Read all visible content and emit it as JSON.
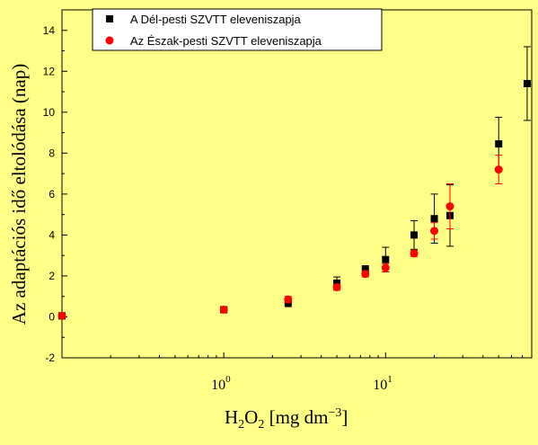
{
  "chart_data": {
    "type": "scatter",
    "x_scale": "log",
    "xlim": [
      0.1,
      80
    ],
    "ylim": [
      -2,
      15
    ],
    "ylabel": "Az adaptációs idő eltolódása (nap)",
    "xlabel": {
      "base": "H",
      "sub1": "2",
      "mid": "O",
      "sub2": "2",
      "rest": " [mg dm",
      "sup": "−3",
      "end": "]"
    },
    "x_ticks": [
      {
        "base": "10",
        "exp": "0",
        "value": 1
      },
      {
        "base": "10",
        "exp": "1",
        "value": 10
      }
    ],
    "y_ticks": [
      "-2",
      "0",
      "2",
      "4",
      "6",
      "8",
      "10",
      "12",
      "14"
    ],
    "legend_position": "top-left",
    "series": [
      {
        "name": "A Dél-pesti SZVTT eleveniszapja",
        "marker": "square",
        "color": "#000000",
        "points": [
          {
            "x": 0.1,
            "y": 0.05,
            "err": 0
          },
          {
            "x": 1,
            "y": 0.35,
            "err": 0.1
          },
          {
            "x": 2.5,
            "y": 0.7,
            "err": 0.2
          },
          {
            "x": 5,
            "y": 1.65,
            "err": 0.3
          },
          {
            "x": 7.5,
            "y": 2.3,
            "err": 0.2
          },
          {
            "x": 10,
            "y": 2.8,
            "err": 0.6
          },
          {
            "x": 15,
            "y": 4.0,
            "err": 0.7
          },
          {
            "x": 20,
            "y": 4.8,
            "err": 1.2
          },
          {
            "x": 25,
            "y": 4.95,
            "err": 1.5
          },
          {
            "x": 50,
            "y": 8.45,
            "err": 1.3
          },
          {
            "x": 75,
            "y": 11.4,
            "err": 1.8
          }
        ]
      },
      {
        "name": "Az Észak-pesti SZVTT eleveniszapja",
        "marker": "circle",
        "color": "#FF0000",
        "points": [
          {
            "x": 0.1,
            "y": 0.05,
            "err": 0
          },
          {
            "x": 1,
            "y": 0.35,
            "err": 0.1
          },
          {
            "x": 2.5,
            "y": 0.85,
            "err": 0.15
          },
          {
            "x": 5,
            "y": 1.45,
            "err": 0.15
          },
          {
            "x": 7.5,
            "y": 2.1,
            "err": 0.15
          },
          {
            "x": 10,
            "y": 2.4,
            "err": 0.2
          },
          {
            "x": 15,
            "y": 3.1,
            "err": 0.15
          },
          {
            "x": 20,
            "y": 4.2,
            "err": 0.4
          },
          {
            "x": 25,
            "y": 5.4,
            "err": 1.1
          },
          {
            "x": 50,
            "y": 7.2,
            "err": 0.7
          }
        ]
      }
    ]
  }
}
